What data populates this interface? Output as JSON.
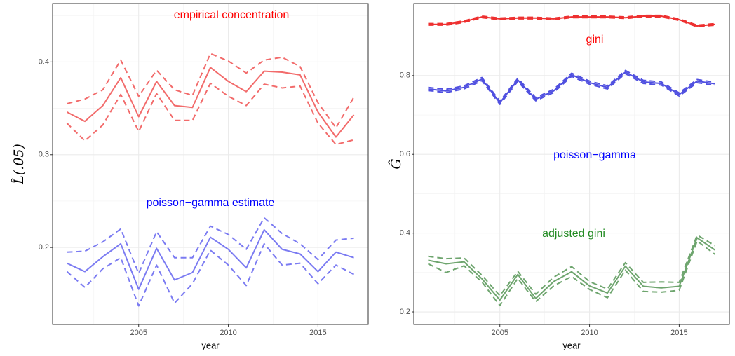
{
  "chart_data": [
    {
      "type": "line",
      "xlabel": "year",
      "ylabel": "L̂(.05)",
      "x": [
        2001,
        2002,
        2003,
        2004,
        2005,
        2006,
        2007,
        2008,
        2009,
        2010,
        2011,
        2012,
        2013,
        2014,
        2015,
        2016,
        2017
      ],
      "xlim": [
        2000.2,
        2017.8
      ],
      "xticks": [
        2005,
        2010,
        2015
      ],
      "ylim": [
        0.117,
        0.463
      ],
      "yticks": [
        0.2,
        0.3,
        0.4
      ],
      "grid": true,
      "series": [
        {
          "color": "#f26b6b",
          "style": "solid",
          "values": [
            0.346,
            0.336,
            0.353,
            0.383,
            0.341,
            0.379,
            0.353,
            0.351,
            0.394,
            0.379,
            0.368,
            0.39,
            0.389,
            0.386,
            0.346,
            0.319,
            0.343
          ]
        },
        {
          "color": "#f26b6b",
          "style": "dashed",
          "values": [
            0.355,
            0.36,
            0.37,
            0.402,
            0.363,
            0.391,
            0.37,
            0.364,
            0.409,
            0.401,
            0.388,
            0.402,
            0.405,
            0.395,
            0.356,
            0.329,
            0.362
          ]
        },
        {
          "color": "#f26b6b",
          "style": "dashed",
          "values": [
            0.334,
            0.315,
            0.332,
            0.365,
            0.325,
            0.366,
            0.337,
            0.337,
            0.377,
            0.363,
            0.353,
            0.376,
            0.372,
            0.374,
            0.334,
            0.311,
            0.316
          ]
        },
        {
          "color": "#7b7bf2",
          "style": "solid",
          "values": [
            0.183,
            0.174,
            0.19,
            0.204,
            0.155,
            0.199,
            0.165,
            0.173,
            0.211,
            0.198,
            0.178,
            0.219,
            0.198,
            0.193,
            0.174,
            0.195,
            0.189
          ]
        },
        {
          "color": "#7b7bf2",
          "style": "dashed",
          "values": [
            0.195,
            0.196,
            0.206,
            0.22,
            0.172,
            0.217,
            0.189,
            0.189,
            0.223,
            0.214,
            0.198,
            0.232,
            0.215,
            0.204,
            0.187,
            0.208,
            0.21
          ]
        },
        {
          "color": "#7b7bf2",
          "style": "dashed",
          "values": [
            0.174,
            0.157,
            0.177,
            0.189,
            0.137,
            0.181,
            0.14,
            0.161,
            0.197,
            0.181,
            0.159,
            0.204,
            0.181,
            0.183,
            0.161,
            0.181,
            0.171
          ]
        }
      ],
      "annotations": [
        {
          "text": "empirical concentration",
          "color": "#ff0000"
        },
        {
          "text": "poisson−gamma estimate",
          "color": "#0000ff"
        }
      ]
    },
    {
      "type": "line",
      "xlabel": "year",
      "ylabel": "Ĝ",
      "x": [
        2001,
        2002,
        2003,
        2004,
        2005,
        2006,
        2007,
        2008,
        2009,
        2010,
        2011,
        2012,
        2013,
        2014,
        2015,
        2016,
        2017
      ],
      "xlim": [
        2000.2,
        2017.8
      ],
      "xticks": [
        2005,
        2010,
        2015
      ],
      "ylim": [
        0.168,
        0.983
      ],
      "yticks": [
        0.2,
        0.4,
        0.6,
        0.8
      ],
      "grid": true,
      "series": [
        {
          "color": "#ee3030",
          "style": "solid",
          "values": [
            0.93,
            0.93,
            0.937,
            0.949,
            0.944,
            0.946,
            0.946,
            0.944,
            0.949,
            0.949,
            0.949,
            0.947,
            0.951,
            0.951,
            0.942,
            0.926,
            0.93
          ]
        },
        {
          "color": "#ee3030",
          "style": "dashed",
          "values": [
            0.932,
            0.932,
            0.939,
            0.951,
            0.946,
            0.948,
            0.948,
            0.946,
            0.951,
            0.951,
            0.951,
            0.949,
            0.953,
            0.953,
            0.944,
            0.928,
            0.932
          ]
        },
        {
          "color": "#ee3030",
          "style": "dashed",
          "values": [
            0.928,
            0.928,
            0.935,
            0.947,
            0.942,
            0.944,
            0.944,
            0.942,
            0.947,
            0.947,
            0.947,
            0.945,
            0.949,
            0.949,
            0.94,
            0.924,
            0.928
          ]
        },
        {
          "color": "#5050e0",
          "style": "solid",
          "values": [
            0.766,
            0.761,
            0.77,
            0.791,
            0.731,
            0.789,
            0.74,
            0.761,
            0.802,
            0.782,
            0.77,
            0.809,
            0.784,
            0.78,
            0.752,
            0.786,
            0.779
          ]
        },
        {
          "color": "#5050e0",
          "style": "dashed",
          "values": [
            0.77,
            0.765,
            0.774,
            0.795,
            0.735,
            0.793,
            0.744,
            0.765,
            0.806,
            0.786,
            0.774,
            0.813,
            0.788,
            0.784,
            0.756,
            0.79,
            0.783
          ]
        },
        {
          "color": "#5050e0",
          "style": "dashed",
          "values": [
            0.762,
            0.757,
            0.766,
            0.787,
            0.727,
            0.785,
            0.736,
            0.757,
            0.798,
            0.778,
            0.766,
            0.805,
            0.78,
            0.776,
            0.748,
            0.782,
            0.775
          ]
        },
        {
          "color": "#6ea56e",
          "style": "solid",
          "values": [
            0.331,
            0.322,
            0.327,
            0.284,
            0.23,
            0.295,
            0.234,
            0.277,
            0.302,
            0.266,
            0.248,
            0.316,
            0.265,
            0.261,
            0.265,
            0.388,
            0.357
          ]
        },
        {
          "color": "#6ea56e",
          "style": "dashed",
          "values": [
            0.341,
            0.335,
            0.337,
            0.293,
            0.241,
            0.303,
            0.245,
            0.288,
            0.315,
            0.277,
            0.258,
            0.325,
            0.275,
            0.276,
            0.275,
            0.395,
            0.368
          ]
        },
        {
          "color": "#6ea56e",
          "style": "dashed",
          "values": [
            0.322,
            0.3,
            0.317,
            0.276,
            0.216,
            0.285,
            0.226,
            0.266,
            0.29,
            0.257,
            0.236,
            0.306,
            0.252,
            0.25,
            0.255,
            0.38,
            0.346
          ]
        }
      ],
      "annotations": [
        {
          "text": "gini",
          "color": "#ff0000"
        },
        {
          "text": "poisson−gamma",
          "color": "#0000ff"
        },
        {
          "text": "adjusted gini",
          "color": "#228b22"
        }
      ]
    }
  ]
}
